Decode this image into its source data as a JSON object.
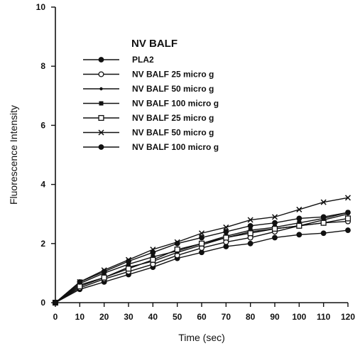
{
  "chart_data": {
    "type": "line",
    "title": "NV BALF",
    "xlabel": "Time (sec)",
    "ylabel": "Fluorescence Intensity",
    "xlim": [
      0,
      120
    ],
    "ylim": [
      0,
      10
    ],
    "xticks": [
      0,
      10,
      20,
      30,
      40,
      50,
      60,
      70,
      80,
      90,
      100,
      110,
      120
    ],
    "yticks": [
      0,
      2,
      4,
      6,
      8,
      10
    ],
    "grid": false,
    "legend_position": "top-left",
    "x": [
      0,
      10,
      20,
      30,
      40,
      50,
      60,
      70,
      80,
      90,
      100,
      110,
      120
    ],
    "series": [
      {
        "name": "PLA2",
        "marker": "filled-circle",
        "values": [
          0,
          0.45,
          0.7,
          0.95,
          1.2,
          1.5,
          1.7,
          1.9,
          2.0,
          2.2,
          2.3,
          2.35,
          2.45
        ]
      },
      {
        "name": "NV BALF 25 micro g",
        "marker": "open-circle",
        "values": [
          0,
          0.5,
          0.8,
          1.05,
          1.3,
          1.6,
          1.85,
          2.05,
          2.2,
          2.4,
          2.6,
          2.7,
          2.75
        ]
      },
      {
        "name": "NV BALF 50  micro g",
        "marker": "small-dot",
        "values": [
          0,
          0.6,
          0.85,
          1.2,
          1.4,
          1.7,
          1.95,
          2.2,
          2.4,
          2.5,
          2.6,
          2.8,
          3.0
        ]
      },
      {
        "name": "NV BALF 100 micro g",
        "marker": "filled-square",
        "values": [
          0,
          0.65,
          1.0,
          1.3,
          1.55,
          1.75,
          2.0,
          2.25,
          2.45,
          2.55,
          2.7,
          2.85,
          3.05
        ]
      },
      {
        "name": "NV BALF 25 micro g",
        "marker": "open-square",
        "values": [
          0,
          0.55,
          0.85,
          1.15,
          1.45,
          1.8,
          2.0,
          2.2,
          2.35,
          2.5,
          2.6,
          2.7,
          2.85
        ]
      },
      {
        "name": "NV BALF 50 micro g",
        "marker": "x",
        "values": [
          0,
          0.7,
          1.1,
          1.45,
          1.8,
          2.05,
          2.35,
          2.55,
          2.8,
          2.9,
          3.15,
          3.4,
          3.55
        ]
      },
      {
        "name": "NV BALF 100 micro g",
        "marker": "filled-circle",
        "values": [
          0,
          0.7,
          1.05,
          1.4,
          1.7,
          2.0,
          2.2,
          2.4,
          2.6,
          2.7,
          2.85,
          2.9,
          3.05
        ]
      }
    ]
  }
}
